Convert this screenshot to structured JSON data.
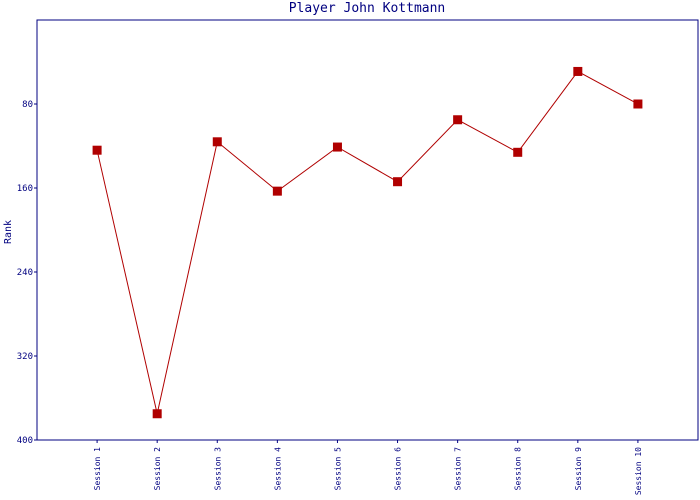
{
  "chart_data": {
    "type": "line",
    "title": "Player John Kottmann",
    "y_label": "Rank",
    "categories": [
      "Session 1",
      "Session 2",
      "Session 3",
      "Session 4",
      "Session 5",
      "Session 6",
      "Session 7",
      "Session 8",
      "Session 9",
      "Session 10"
    ],
    "series": [
      {
        "name": "Rank",
        "color": "#b00000",
        "values": [
          124,
          375,
          116,
          163,
          121,
          154,
          95,
          126,
          49,
          80
        ]
      }
    ],
    "ylim": [
      400,
      0
    ],
    "yticks": [
      80,
      160,
      240,
      320,
      400
    ],
    "inverted_y": true,
    "axis_color": "#000080"
  }
}
